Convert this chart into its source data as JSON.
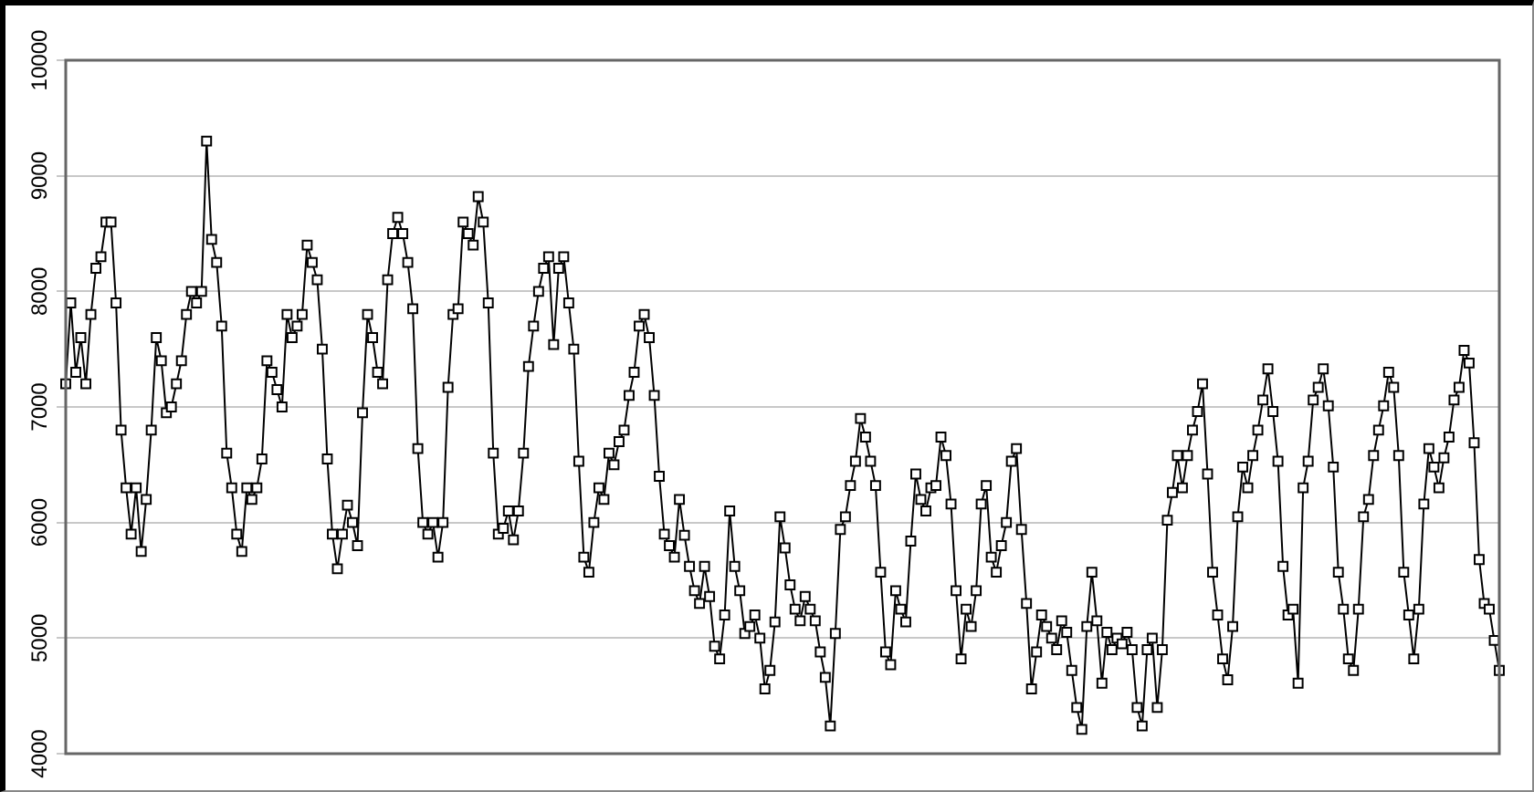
{
  "chart_data": {
    "type": "line",
    "categories": [
      null,
      null,
      null,
      null,
      null,
      null,
      null,
      null,
      null,
      null,
      null,
      null,
      null,
      null,
      null,
      null,
      null,
      null,
      null,
      null,
      null,
      null,
      null,
      null,
      null,
      null,
      null,
      null,
      null,
      null,
      null,
      null,
      null,
      null,
      null,
      null,
      null,
      null,
      null,
      null,
      null,
      null,
      null,
      null,
      null,
      null,
      null,
      null,
      null,
      null,
      null,
      null,
      null,
      null,
      null,
      null,
      null,
      null,
      null,
      null,
      null,
      null,
      null,
      null,
      null,
      null,
      null,
      null,
      null,
      null,
      null,
      null,
      null,
      null,
      null,
      null,
      null,
      null,
      null,
      null,
      null,
      null,
      null,
      null,
      null,
      null,
      null,
      null,
      null,
      null,
      null,
      null,
      null,
      null,
      null,
      null,
      null,
      null,
      null,
      null,
      null,
      null,
      null,
      null,
      null,
      null,
      null,
      null,
      null,
      null,
      null,
      null,
      null,
      null,
      null,
      null,
      null,
      null,
      null,
      null,
      null,
      null,
      null,
      null,
      null,
      null,
      null,
      null,
      null,
      null,
      null,
      null,
      null,
      null,
      null,
      null,
      null,
      null,
      null,
      null,
      null,
      null,
      null,
      null,
      null,
      null,
      null,
      null,
      null,
      null,
      null,
      null,
      null,
      null,
      null,
      null,
      null,
      null,
      null,
      null,
      null,
      null,
      null,
      null,
      null,
      null,
      null,
      null,
      null,
      null,
      null,
      null,
      null,
      null,
      null,
      null,
      null,
      null,
      null,
      null,
      null,
      null,
      null,
      null,
      null,
      null,
      null,
      null,
      null,
      null,
      null,
      null,
      null,
      null,
      null,
      null,
      null,
      null,
      null,
      null,
      null,
      null,
      null,
      null,
      null,
      null,
      null,
      null,
      null,
      null,
      null,
      null,
      null,
      null,
      null,
      null,
      null,
      null,
      null,
      null,
      null,
      null,
      null,
      null,
      null,
      null,
      null,
      null,
      null,
      null,
      null,
      null,
      null,
      null,
      null,
      null,
      null,
      null,
      null,
      null,
      null,
      null,
      null,
      null,
      null,
      null,
      null,
      null,
      null,
      null,
      null,
      null,
      null,
      null,
      null,
      null,
      null,
      null,
      null,
      null,
      null,
      null,
      null,
      null,
      null,
      null,
      null,
      null,
      null,
      null,
      null,
      null,
      null,
      null,
      null,
      null,
      null,
      null,
      null,
      null,
      null,
      null,
      null,
      null,
      null,
      null
    ],
    "values": [
      7200,
      7900,
      7300,
      7600,
      7200,
      7800,
      8200,
      8300,
      8600,
      8600,
      7900,
      6800,
      6300,
      5900,
      6300,
      5750,
      6200,
      6800,
      7600,
      7400,
      6950,
      7000,
      7200,
      7400,
      7800,
      8000,
      7900,
      8000,
      9300,
      8450,
      8250,
      7700,
      6600,
      6300,
      5900,
      5750,
      6300,
      6200,
      6300,
      6550,
      7400,
      7300,
      7150,
      7000,
      7800,
      7600,
      7700,
      7800,
      8400,
      8250,
      8100,
      7500,
      6550,
      5900,
      5600,
      5900,
      6150,
      6000,
      5800,
      6950,
      7800,
      7600,
      7300,
      7200,
      8100,
      8500,
      8640,
      8500,
      8250,
      7850,
      6640,
      6000,
      5900,
      6000,
      5700,
      6000,
      7170,
      7800,
      7850,
      8600,
      8500,
      8400,
      8820,
      8600,
      7900,
      6600,
      5900,
      5950,
      6100,
      5850,
      6100,
      6600,
      7350,
      7700,
      8000,
      8200,
      8300,
      7540,
      8200,
      8300,
      7900,
      7500,
      6530,
      5700,
      5570,
      6000,
      6300,
      6200,
      6600,
      6500,
      6700,
      6800,
      7100,
      7300,
      7700,
      7800,
      7600,
      7100,
      6400,
      5900,
      5800,
      5700,
      6200,
      5890,
      5620,
      5410,
      5300,
      5620,
      5360,
      4930,
      4820,
      5200,
      6100,
      5620,
      5410,
      5040,
      5100,
      5200,
      5000,
      4560,
      4720,
      5140,
      6050,
      5780,
      5460,
      5250,
      5150,
      5360,
      5250,
      5150,
      4880,
      4660,
      4240,
      5040,
      5940,
      6050,
      6320,
      6530,
      6900,
      6740,
      6530,
      6320,
      5570,
      4880,
      4770,
      5410,
      5250,
      5140,
      5840,
      6420,
      6200,
      6100,
      6300,
      6320,
      6740,
      6580,
      6160,
      5410,
      4820,
      5250,
      5100,
      5410,
      6160,
      6320,
      5700,
      5570,
      5800,
      6000,
      6530,
      6640,
      5940,
      5300,
      4560,
      4880,
      5200,
      5100,
      5000,
      4900,
      5150,
      5050,
      4720,
      4400,
      4210,
      5100,
      5570,
      5150,
      4610,
      5050,
      4900,
      5000,
      4950,
      5050,
      4900,
      4400,
      4240,
      4900,
      5000,
      4400,
      4900,
      6020,
      6260,
      6580,
      6300,
      6580,
      6800,
      6960,
      7200,
      6420,
      5570,
      5200,
      4820,
      4640,
      5100,
      6050,
      6480,
      6300,
      6580,
      6800,
      7060,
      7330,
      6960,
      6530,
      5620,
      5200,
      5250,
      4610,
      6300,
      6530,
      7060,
      7170,
      7330,
      7010,
      6480,
      5570,
      5250,
      4820,
      4720,
      5250,
      6050,
      6200,
      6580,
      6800,
      7010,
      7300,
      7170,
      6580,
      5570,
      5200,
      4820,
      5250,
      6160,
      6640,
      6480,
      6300,
      6560,
      6740,
      7060,
      7170,
      7490,
      7380,
      6690,
      5680,
      5300,
      5250,
      4980,
      4720
    ],
    "color": "#000000",
    "ylim": [
      4000,
      10000
    ],
    "yticks": [
      4000,
      5000,
      6000,
      7000,
      8000,
      9000,
      10000
    ],
    "grid": "y",
    "legend": false,
    "marker": "square",
    "line_style": "solid",
    "tick_labels": "y"
  }
}
